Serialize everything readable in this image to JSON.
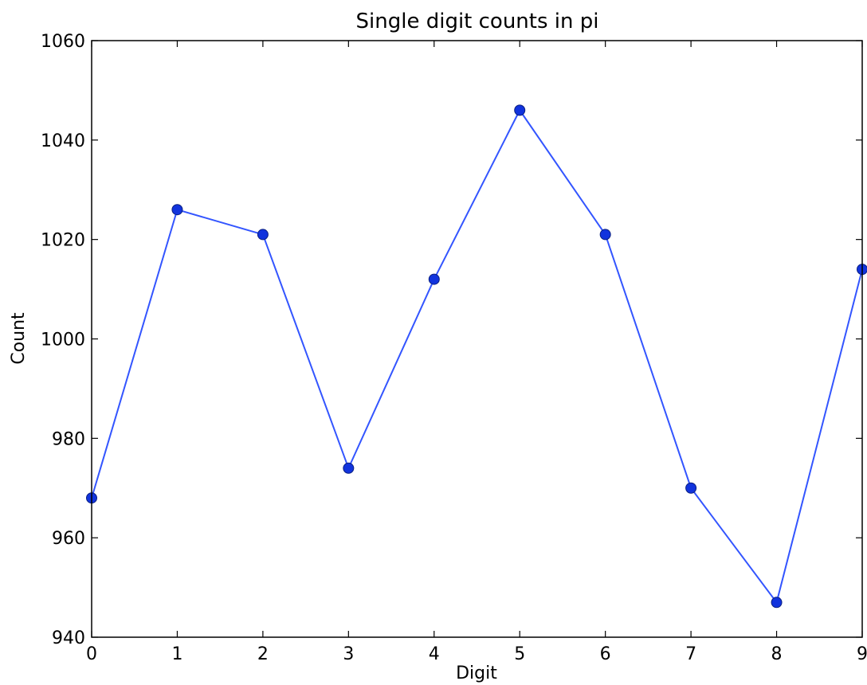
{
  "chart_data": {
    "type": "line",
    "title": "Single digit counts in pi",
    "xlabel": "Digit",
    "ylabel": "Count",
    "x": [
      0,
      1,
      2,
      3,
      4,
      5,
      6,
      7,
      8,
      9
    ],
    "series": [
      {
        "values": [
          968,
          1026,
          1021,
          974,
          1012,
          1046,
          1021,
          970,
          947,
          1014
        ],
        "color": "#3355ff",
        "marker_color": "#1133dd"
      }
    ],
    "xlim": [
      0,
      9
    ],
    "ylim": [
      940,
      1060
    ],
    "x_ticks": [
      0,
      1,
      2,
      3,
      4,
      5,
      6,
      7,
      8,
      9
    ],
    "x_tick_labels": [
      "0",
      "1",
      "2",
      "3",
      "4",
      "5",
      "6",
      "7",
      "8",
      "9"
    ],
    "y_ticks": [
      940,
      960,
      980,
      1000,
      1020,
      1040,
      1060
    ],
    "y_tick_labels": [
      "940",
      "960",
      "980",
      "1000",
      "1020",
      "1040",
      "1060"
    ],
    "grid": false,
    "legend": "none"
  }
}
